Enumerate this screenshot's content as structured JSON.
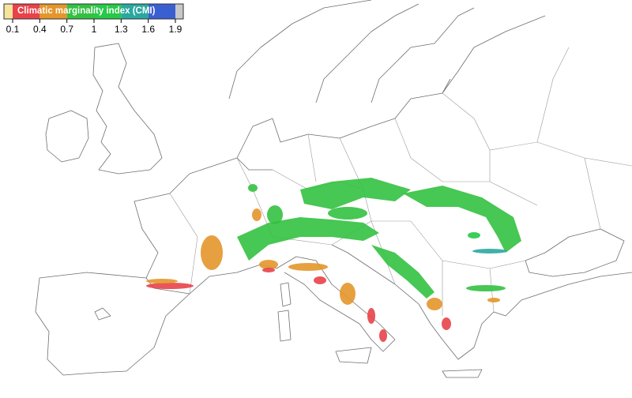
{
  "legend": {
    "title": "Climatic marginality index (CMI)",
    "ticks": [
      0.1,
      0.4,
      0.7,
      1,
      1.3,
      1.6,
      1.9
    ],
    "colors": [
      "#f4e49c",
      "#e8424a",
      "#e4962a",
      "#33c140",
      "#26c948",
      "#2aa8a0",
      "#3a5fd0",
      "#c8c8c8"
    ]
  }
}
